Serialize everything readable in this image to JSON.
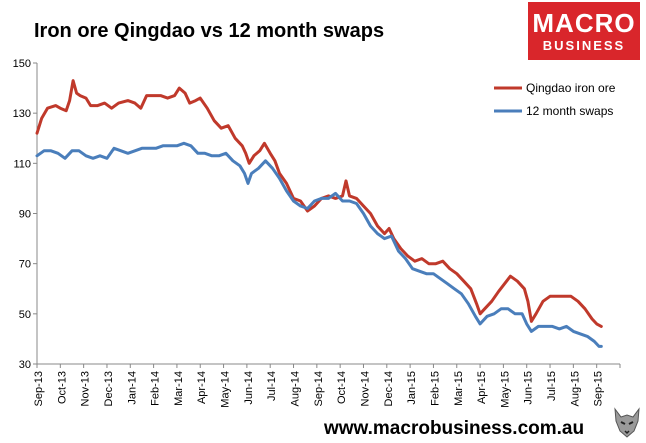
{
  "brand": {
    "line1": "MACRO",
    "line2": "BUSINESS",
    "website": "www.macrobusiness.com.au",
    "color": "#d9262b"
  },
  "chart_data": {
    "type": "line",
    "title": "Iron ore Qingdao vs 12 month swaps",
    "xlabel": "",
    "ylabel": "",
    "ylim": [
      30,
      150
    ],
    "yticks": [
      30,
      50,
      70,
      90,
      110,
      130,
      150
    ],
    "ytick_labels": [
      "30",
      "50",
      "70",
      "90",
      "110",
      "130",
      "150"
    ],
    "x_domain": [
      0,
      25
    ],
    "xtick_labels": [
      "Sep-13",
      "Oct-13",
      "Nov-13",
      "Dec-13",
      "Jan-14",
      "Feb-14",
      "Mar-14",
      "Apr-14",
      "May-14",
      "Jun-14",
      "Jul-14",
      "Aug-14",
      "Sep-14",
      "Oct-14",
      "Nov-14",
      "Dec-14",
      "Jan-15",
      "Feb-15",
      "Mar-15",
      "Apr-15",
      "May-15",
      "Jun-15",
      "Jul-15",
      "Aug-15",
      "Sep-15"
    ],
    "legend_position": "top-right",
    "grid": false,
    "series": [
      {
        "name": "Qingdao iron ore",
        "color": "#c0392b",
        "points": [
          [
            0.0,
            122
          ],
          [
            0.2,
            128
          ],
          [
            0.45,
            132
          ],
          [
            0.8,
            133
          ],
          [
            1.0,
            132
          ],
          [
            1.25,
            131
          ],
          [
            1.4,
            135
          ],
          [
            1.55,
            143
          ],
          [
            1.7,
            138
          ],
          [
            1.85,
            137
          ],
          [
            2.1,
            136
          ],
          [
            2.3,
            133
          ],
          [
            2.6,
            133
          ],
          [
            2.9,
            134
          ],
          [
            3.2,
            132
          ],
          [
            3.5,
            134
          ],
          [
            3.9,
            135
          ],
          [
            4.2,
            134
          ],
          [
            4.45,
            132
          ],
          [
            4.7,
            137
          ],
          [
            5.0,
            137
          ],
          [
            5.3,
            137
          ],
          [
            5.6,
            136
          ],
          [
            5.9,
            137
          ],
          [
            6.1,
            140
          ],
          [
            6.35,
            138
          ],
          [
            6.55,
            134
          ],
          [
            6.8,
            135
          ],
          [
            7.0,
            136
          ],
          [
            7.3,
            132
          ],
          [
            7.6,
            127
          ],
          [
            7.9,
            124
          ],
          [
            8.2,
            125
          ],
          [
            8.5,
            120
          ],
          [
            8.8,
            117
          ],
          [
            8.95,
            114
          ],
          [
            9.1,
            110
          ],
          [
            9.3,
            113
          ],
          [
            9.55,
            115
          ],
          [
            9.75,
            118
          ],
          [
            10.0,
            114
          ],
          [
            10.2,
            111
          ],
          [
            10.4,
            106
          ],
          [
            10.7,
            102
          ],
          [
            11.0,
            96
          ],
          [
            11.3,
            95
          ],
          [
            11.6,
            91
          ],
          [
            11.9,
            93
          ],
          [
            12.2,
            96
          ],
          [
            12.5,
            97
          ],
          [
            12.8,
            96
          ],
          [
            13.1,
            97
          ],
          [
            13.25,
            103
          ],
          [
            13.4,
            97
          ],
          [
            13.7,
            96
          ],
          [
            14.0,
            93
          ],
          [
            14.3,
            90
          ],
          [
            14.6,
            85
          ],
          [
            14.9,
            82
          ],
          [
            15.1,
            84
          ],
          [
            15.3,
            80
          ],
          [
            15.6,
            76
          ],
          [
            15.9,
            73
          ],
          [
            16.2,
            71
          ],
          [
            16.5,
            72
          ],
          [
            16.8,
            70
          ],
          [
            17.1,
            70
          ],
          [
            17.4,
            71
          ],
          [
            17.7,
            68
          ],
          [
            18.0,
            66
          ],
          [
            18.3,
            63
          ],
          [
            18.6,
            60
          ],
          [
            18.85,
            54
          ],
          [
            19.0,
            50
          ],
          [
            19.2,
            52
          ],
          [
            19.5,
            55
          ],
          [
            19.8,
            59
          ],
          [
            20.05,
            62
          ],
          [
            20.3,
            65
          ],
          [
            20.6,
            63
          ],
          [
            20.9,
            60
          ],
          [
            21.05,
            55
          ],
          [
            21.2,
            47
          ],
          [
            21.4,
            50
          ],
          [
            21.7,
            55
          ],
          [
            22.0,
            57
          ],
          [
            22.3,
            57
          ],
          [
            22.6,
            57
          ],
          [
            22.9,
            57
          ],
          [
            23.2,
            55
          ],
          [
            23.5,
            52
          ],
          [
            23.8,
            48
          ],
          [
            24.0,
            46
          ],
          [
            24.2,
            45
          ]
        ]
      },
      {
        "name": "12 month swaps",
        "color": "#4a7ebb",
        "points": [
          [
            0.0,
            113
          ],
          [
            0.3,
            115
          ],
          [
            0.6,
            115
          ],
          [
            0.9,
            114
          ],
          [
            1.2,
            112
          ],
          [
            1.5,
            115
          ],
          [
            1.8,
            115
          ],
          [
            2.1,
            113
          ],
          [
            2.4,
            112
          ],
          [
            2.7,
            113
          ],
          [
            3.0,
            112
          ],
          [
            3.3,
            116
          ],
          [
            3.6,
            115
          ],
          [
            3.9,
            114
          ],
          [
            4.2,
            115
          ],
          [
            4.5,
            116
          ],
          [
            4.8,
            116
          ],
          [
            5.1,
            116
          ],
          [
            5.4,
            117
          ],
          [
            5.7,
            117
          ],
          [
            6.0,
            117
          ],
          [
            6.3,
            118
          ],
          [
            6.6,
            117
          ],
          [
            6.9,
            114
          ],
          [
            7.2,
            114
          ],
          [
            7.5,
            113
          ],
          [
            7.8,
            113
          ],
          [
            8.1,
            114
          ],
          [
            8.4,
            111
          ],
          [
            8.7,
            109
          ],
          [
            8.9,
            106
          ],
          [
            9.05,
            102
          ],
          [
            9.2,
            106
          ],
          [
            9.5,
            108
          ],
          [
            9.8,
            111
          ],
          [
            10.1,
            108
          ],
          [
            10.4,
            104
          ],
          [
            10.7,
            99
          ],
          [
            11.0,
            95
          ],
          [
            11.3,
            93
          ],
          [
            11.6,
            92
          ],
          [
            11.9,
            95
          ],
          [
            12.2,
            96
          ],
          [
            12.5,
            96
          ],
          [
            12.8,
            98
          ],
          [
            13.1,
            95
          ],
          [
            13.4,
            95
          ],
          [
            13.7,
            94
          ],
          [
            14.0,
            90
          ],
          [
            14.3,
            85
          ],
          [
            14.6,
            82
          ],
          [
            14.9,
            80
          ],
          [
            15.2,
            81
          ],
          [
            15.5,
            75
          ],
          [
            15.8,
            72
          ],
          [
            16.1,
            68
          ],
          [
            16.4,
            67
          ],
          [
            16.7,
            66
          ],
          [
            17.0,
            66
          ],
          [
            17.3,
            64
          ],
          [
            17.6,
            62
          ],
          [
            17.9,
            60
          ],
          [
            18.2,
            58
          ],
          [
            18.5,
            54
          ],
          [
            18.8,
            49
          ],
          [
            19.0,
            46
          ],
          [
            19.3,
            49
          ],
          [
            19.6,
            50
          ],
          [
            19.9,
            52
          ],
          [
            20.2,
            52
          ],
          [
            20.5,
            50
          ],
          [
            20.8,
            50
          ],
          [
            21.0,
            46
          ],
          [
            21.2,
            43
          ],
          [
            21.5,
            45
          ],
          [
            21.8,
            45
          ],
          [
            22.1,
            45
          ],
          [
            22.4,
            44
          ],
          [
            22.7,
            45
          ],
          [
            23.0,
            43
          ],
          [
            23.3,
            42
          ],
          [
            23.6,
            41
          ],
          [
            23.9,
            39
          ],
          [
            24.1,
            37
          ],
          [
            24.2,
            37
          ]
        ]
      }
    ]
  }
}
